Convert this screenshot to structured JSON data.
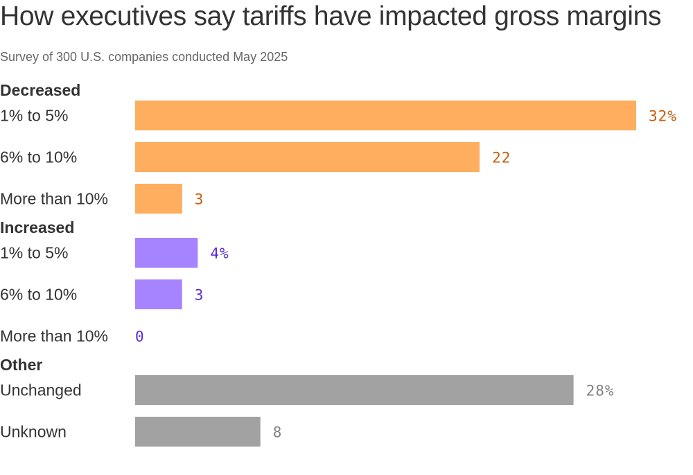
{
  "chart_data": {
    "type": "bar",
    "orientation": "horizontal",
    "title": "How executives say tariffs have impacted gross margins",
    "subtitle": "Survey of 300 U.S. companies conducted May 2025",
    "xlabel": "",
    "ylabel": "",
    "xlim": [
      0,
      32
    ],
    "grid": false,
    "groups": [
      {
        "name": "Decreased",
        "color": "#ffad5e",
        "label_color": "#c75d0a",
        "bars": [
          {
            "category": "1% to 5%",
            "value": 32,
            "label": "32%"
          },
          {
            "category": "6% to 10%",
            "value": 22,
            "label": "22"
          },
          {
            "category": "More than 10%",
            "value": 3,
            "label": "3"
          }
        ]
      },
      {
        "name": "Increased",
        "color": "#a683ff",
        "label_color": "#5a2bd8",
        "bars": [
          {
            "category": "1% to 5%",
            "value": 4,
            "label": "4%"
          },
          {
            "category": "6% to 10%",
            "value": 3,
            "label": "3"
          },
          {
            "category": "More than 10%",
            "value": 0,
            "label": "0"
          }
        ]
      },
      {
        "name": "Other",
        "color": "#a2a2a2",
        "label_color": "#808080",
        "bars": [
          {
            "category": "Unchanged",
            "value": 28,
            "label": "28%"
          },
          {
            "category": "Unknown",
            "value": 8,
            "label": "8"
          }
        ]
      }
    ]
  }
}
